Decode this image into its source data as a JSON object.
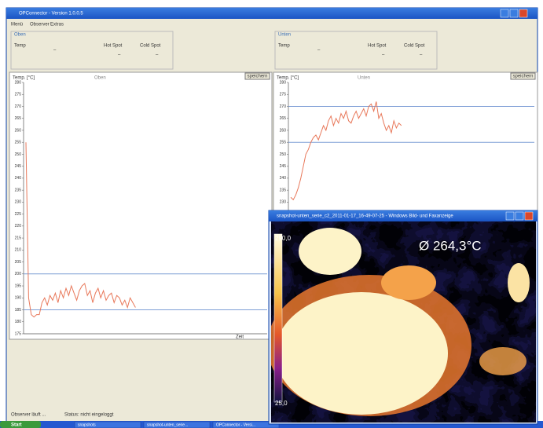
{
  "window": {
    "title": "OPConnector - Version 1.0.0.5",
    "menu": [
      "Menü",
      "Observer",
      "Extras"
    ]
  },
  "panels": [
    {
      "title": "Oben",
      "temp_label": "Temp",
      "temp": "–",
      "hot_label": "Hot Spot",
      "hot": "–",
      "cold_label": "Cold Spot",
      "cold": "–"
    },
    {
      "title": "Unten",
      "temp_label": "Temp",
      "temp": "–",
      "hot_label": "Hot Spot",
      "hot": "–",
      "cold_label": "Cold Spot",
      "cold": "–"
    }
  ],
  "chart_data": [
    {
      "type": "line",
      "title": "Oben",
      "y_label": "Temp. [°C]",
      "x_label": "Zeit",
      "button": "speichern",
      "ylim": [
        175,
        280
      ],
      "yticks": [
        175,
        180,
        185,
        190,
        195,
        200,
        205,
        210,
        215,
        220,
        225,
        230,
        235,
        240,
        245,
        250,
        255,
        260,
        265,
        270,
        275,
        280
      ],
      "hlines": [
        200,
        185
      ],
      "hline_color": "#7f9fd6",
      "color": "#e8785a",
      "values": [
        255,
        190,
        183,
        182,
        183,
        183,
        188,
        190,
        187,
        191,
        189,
        192,
        188,
        193,
        190,
        194,
        191,
        195,
        192,
        189,
        193,
        195,
        196,
        191,
        193,
        188,
        192,
        194,
        190,
        193,
        189,
        191,
        192,
        188,
        191,
        190,
        187,
        189,
        186,
        190,
        188,
        186
      ]
    },
    {
      "type": "line",
      "title": "Unten",
      "y_label": "Temp. [°C]",
      "button": "speichern",
      "ylim": [
        175,
        280
      ],
      "yticks": [
        230,
        235,
        240,
        245,
        250,
        255,
        260,
        265,
        270,
        275,
        280
      ],
      "hlines": [
        270,
        255
      ],
      "hline_color": "#7f9fd6",
      "color": "#e8785a",
      "values": [
        232,
        231,
        233,
        236,
        240,
        245,
        250,
        252,
        255,
        257,
        258,
        256,
        259,
        262,
        260,
        264,
        266,
        262,
        265,
        263,
        267,
        265,
        268,
        264,
        263,
        266,
        268,
        265,
        267,
        269,
        266,
        270,
        271,
        268,
        272,
        265,
        267,
        263,
        260,
        262,
        259,
        264,
        261,
        263,
        262
      ]
    }
  ],
  "image_window": {
    "title": "snapshot-unten_serie_c2_2011-01-17_16-49-07-25 - Windows Bild- und Faxanzeige",
    "average": "Ø  264,3°C",
    "scale_max": "290,0",
    "scale_min": "25,0"
  },
  "status": {
    "observer": "Observer läuft ...",
    "state": "Status: nicht eingeloggt"
  },
  "taskbar": {
    "start": "Start",
    "tasks": [
      "snapshots",
      "snapshot-unten_serie...",
      "OPConnector - Versi..."
    ]
  }
}
